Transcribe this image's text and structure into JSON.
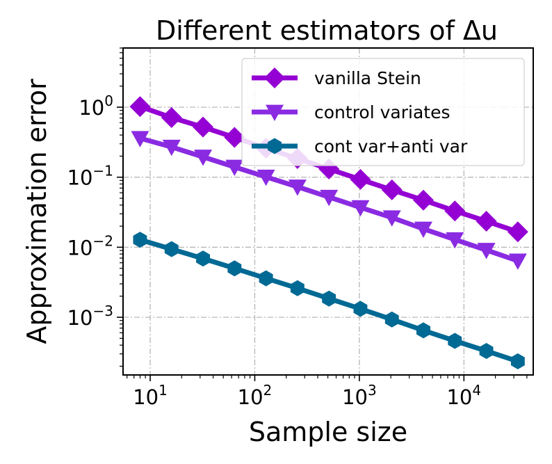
{
  "chart_data": {
    "type": "line",
    "title": "Different estimators of Δu",
    "xlabel": "Sample size",
    "ylabel": "Approximation error",
    "xscale": "log",
    "yscale": "log",
    "xlim": [
      5.5,
      46000
    ],
    "ylim": [
      0.00015,
      7
    ],
    "grid": true,
    "legend_position": "upper-right",
    "x": [
      8,
      16,
      32,
      64,
      128,
      256,
      512,
      1024,
      2048,
      4096,
      8192,
      16384,
      32768
    ],
    "x_ticks": [
      {
        "value": 10,
        "base": "10",
        "exp": "1"
      },
      {
        "value": 100,
        "base": "10",
        "exp": "2"
      },
      {
        "value": 1000,
        "base": "10",
        "exp": "3"
      },
      {
        "value": 10000,
        "base": "10",
        "exp": "4"
      }
    ],
    "y_ticks": [
      {
        "value": 1,
        "base": "10",
        "exp": "0"
      },
      {
        "value": 0.1,
        "base": "10",
        "exp": "−1"
      },
      {
        "value": 0.01,
        "base": "10",
        "exp": "−2"
      },
      {
        "value": 0.001,
        "base": "10",
        "exp": "−3"
      }
    ],
    "series": [
      {
        "name": "vanilla Stein",
        "color": "#9400d3",
        "marker": "diamond",
        "values": [
          1.02,
          0.71,
          0.52,
          0.37,
          0.26,
          0.185,
          0.131,
          0.093,
          0.066,
          0.047,
          0.033,
          0.0235,
          0.0166
        ]
      },
      {
        "name": "control variates",
        "color": "#8a2be2",
        "marker": "triangle-down",
        "values": [
          0.36,
          0.27,
          0.195,
          0.14,
          0.101,
          0.073,
          0.052,
          0.037,
          0.0265,
          0.0183,
          0.0129,
          0.0091,
          0.0064
        ]
      },
      {
        "name": "cont var+anti var",
        "color": "#006994",
        "marker": "hexagon",
        "values": [
          0.0128,
          0.0094,
          0.0069,
          0.005,
          0.0036,
          0.0026,
          0.00185,
          0.00132,
          0.00093,
          0.00065,
          0.00046,
          0.00033,
          0.000235
        ]
      }
    ]
  }
}
